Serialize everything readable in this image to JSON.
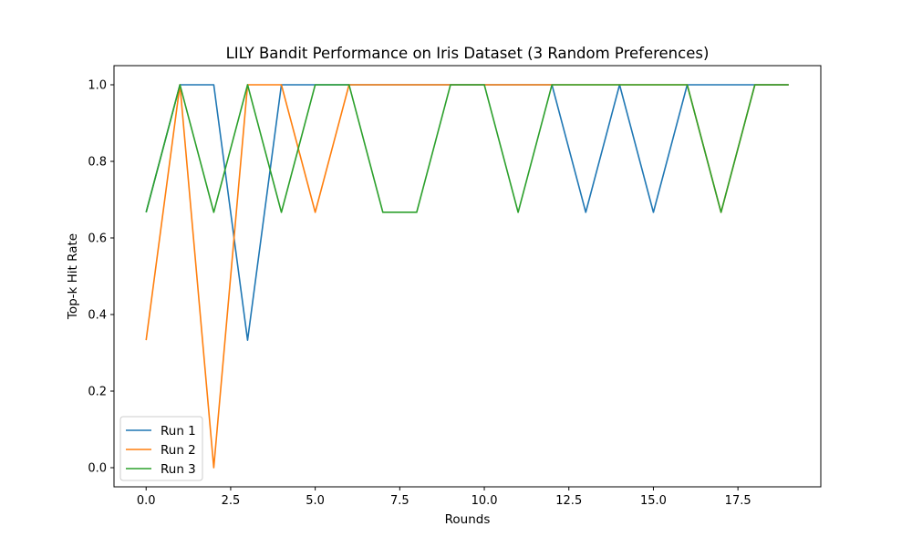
{
  "chart_data": {
    "type": "line",
    "title": "LILY Bandit Performance on Iris Dataset (3 Random Preferences)",
    "xlabel": "Rounds",
    "ylabel": "Top-k Hit Rate",
    "xlim": [
      -0.95,
      19.95
    ],
    "ylim": [
      -0.05,
      1.05
    ],
    "xticks": [
      0,
      2.5,
      5,
      7.5,
      10,
      12.5,
      15,
      17.5
    ],
    "xtick_labels": [
      "0.0",
      "2.5",
      "5.0",
      "7.5",
      "10.0",
      "12.5",
      "15.0",
      "17.5"
    ],
    "yticks": [
      0,
      0.2,
      0.4,
      0.6,
      0.8,
      1.0
    ],
    "ytick_labels": [
      "0.0",
      "0.2",
      "0.4",
      "0.6",
      "0.8",
      "1.0"
    ],
    "grid": false,
    "legend_position": "bottom-left",
    "x": [
      0,
      1,
      2,
      3,
      4,
      5,
      6,
      7,
      8,
      9,
      10,
      11,
      12,
      13,
      14,
      15,
      16,
      17,
      18,
      19
    ],
    "series": [
      {
        "name": "Run 1",
        "color": "#1f77b4",
        "values": [
          0.667,
          1.0,
          1.0,
          0.333,
          1.0,
          1.0,
          1.0,
          1.0,
          1.0,
          1.0,
          1.0,
          1.0,
          1.0,
          0.667,
          1.0,
          0.667,
          1.0,
          1.0,
          1.0,
          1.0
        ]
      },
      {
        "name": "Run 2",
        "color": "#ff7f0e",
        "values": [
          0.333,
          1.0,
          0.0,
          1.0,
          1.0,
          0.667,
          1.0,
          1.0,
          1.0,
          1.0,
          1.0,
          1.0,
          1.0,
          1.0,
          1.0,
          1.0,
          1.0,
          0.667,
          1.0,
          1.0
        ]
      },
      {
        "name": "Run 3",
        "color": "#2ca02c",
        "values": [
          0.667,
          1.0,
          0.667,
          1.0,
          0.667,
          1.0,
          1.0,
          0.667,
          0.667,
          1.0,
          1.0,
          0.667,
          1.0,
          1.0,
          1.0,
          1.0,
          1.0,
          0.667,
          1.0,
          1.0
        ]
      }
    ]
  }
}
